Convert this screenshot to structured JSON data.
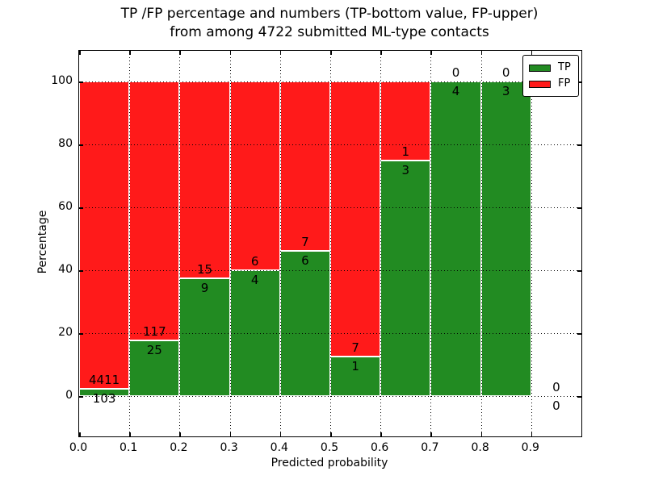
{
  "chart_data": {
    "type": "bar",
    "stacked": true,
    "normalized_to_percent": true,
    "title": "TP /FP percentage and numbers (TP-bottom value, FP-upper)\nfrom among 4722 submitted ML-type contacts",
    "title_line1": "TP /FP percentage and numbers (TP-bottom value, FP-upper)",
    "title_line2": "from among 4722 submitted ML-type contacts",
    "xlabel": "Predicted probability",
    "ylabel": "Percentage",
    "total_contacts": 4722,
    "categories": [
      "0.0-0.1",
      "0.1-0.2",
      "0.2-0.3",
      "0.3-0.4",
      "0.4-0.5",
      "0.5-0.6",
      "0.6-0.7",
      "0.7-0.8",
      "0.8-0.9",
      "0.9-1.0"
    ],
    "bin_width": 0.1,
    "series": [
      {
        "name": "TP",
        "color": "#228B22",
        "values": [
          103,
          25,
          9,
          4,
          6,
          1,
          3,
          4,
          3,
          0
        ]
      },
      {
        "name": "FP",
        "color": "#FF1A1A",
        "values": [
          4411,
          117,
          15,
          6,
          7,
          7,
          1,
          0,
          0,
          0
        ]
      }
    ],
    "tp_percent": [
      2.28,
      17.61,
      37.5,
      40.0,
      46.15,
      12.5,
      75.0,
      100.0,
      100.0,
      0.0
    ],
    "x_tick_labels": [
      "0.0",
      "0.1",
      "0.2",
      "0.3",
      "0.4",
      "0.5",
      "0.6",
      "0.7",
      "0.8",
      "0.9"
    ],
    "y_ticks": [
      0,
      20,
      40,
      60,
      80,
      100
    ],
    "y_tick_labels": [
      "0",
      "20",
      "40",
      "60",
      "80",
      "100"
    ],
    "xlim": [
      0.0,
      1.0
    ],
    "ylim": [
      -13,
      110
    ],
    "grid": true,
    "grid_style": "dotted",
    "legend": {
      "position": "upper right",
      "entries": [
        {
          "label": "TP",
          "color": "#228B22"
        },
        {
          "label": "FP",
          "color": "#FF1A1A"
        }
      ]
    }
  }
}
